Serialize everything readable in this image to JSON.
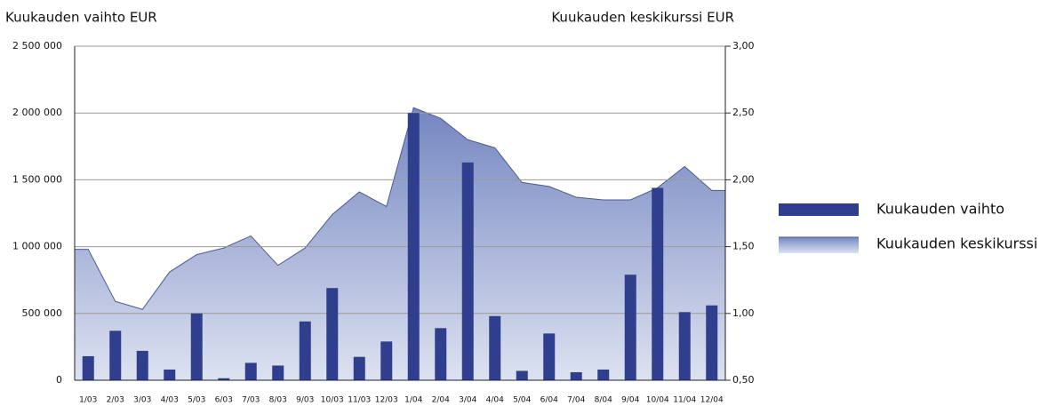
{
  "chart_data": {
    "type": "bar-area",
    "left_title": "Kuukauden vaihto EUR",
    "right_title": "Kuukauden keskikurssi EUR",
    "categories": [
      "1/03",
      "2/03",
      "3/03",
      "4/03",
      "5/03",
      "6/03",
      "7/03",
      "8/03",
      "9/03",
      "10/03",
      "11/03",
      "12/03",
      "1/04",
      "2/04",
      "3/04",
      "4/04",
      "5/04",
      "6/04",
      "7/04",
      "8/04",
      "9/04",
      "10/04",
      "11/04",
      "12/04"
    ],
    "series": [
      {
        "name": "Kuukauden vaihto",
        "type": "bar",
        "color": "#2f3f8e",
        "values": [
          180000,
          370000,
          220000,
          80000,
          500000,
          15000,
          130000,
          110000,
          440000,
          690000,
          175000,
          290000,
          2000000,
          390000,
          1630000,
          480000,
          70000,
          350000,
          60000,
          80000,
          790000,
          1440000,
          510000,
          560000
        ]
      },
      {
        "name": "Kuukauden keskikurssi",
        "type": "area",
        "axis": "y2",
        "color": "#4a5a9a",
        "values": [
          1.48,
          1.09,
          1.03,
          1.31,
          1.44,
          1.49,
          1.58,
          1.36,
          1.49,
          1.74,
          1.91,
          1.8,
          2.54,
          2.46,
          2.3,
          2.24,
          1.98,
          1.95,
          1.87,
          1.85,
          1.85,
          1.94,
          2.1,
          1.92
        ]
      }
    ],
    "ylim": [
      0,
      2500000
    ],
    "yticks": [
      0,
      {
        "value": 500000,
        "label": "500 000"
      },
      {
        "value": 1000000,
        "label": "1 000 000"
      },
      {
        "value": 1500000,
        "label": "1 500 000"
      },
      {
        "value": 2000000,
        "label": "2 000 000"
      },
      {
        "value": 2500000,
        "label": "2 500 000"
      }
    ],
    "y2lim": [
      0.5,
      3.0
    ],
    "y2ticks": [
      {
        "value": 0.5,
        "label": "0,50"
      },
      {
        "value": 1.0,
        "label": "1,00"
      },
      {
        "value": 1.5,
        "label": "1,50"
      },
      {
        "value": 2.0,
        "label": "2,00"
      },
      {
        "value": 2.5,
        "label": "2,50"
      },
      {
        "value": 3.0,
        "label": "3,00"
      }
    ],
    "grid": true,
    "legend": "right"
  }
}
